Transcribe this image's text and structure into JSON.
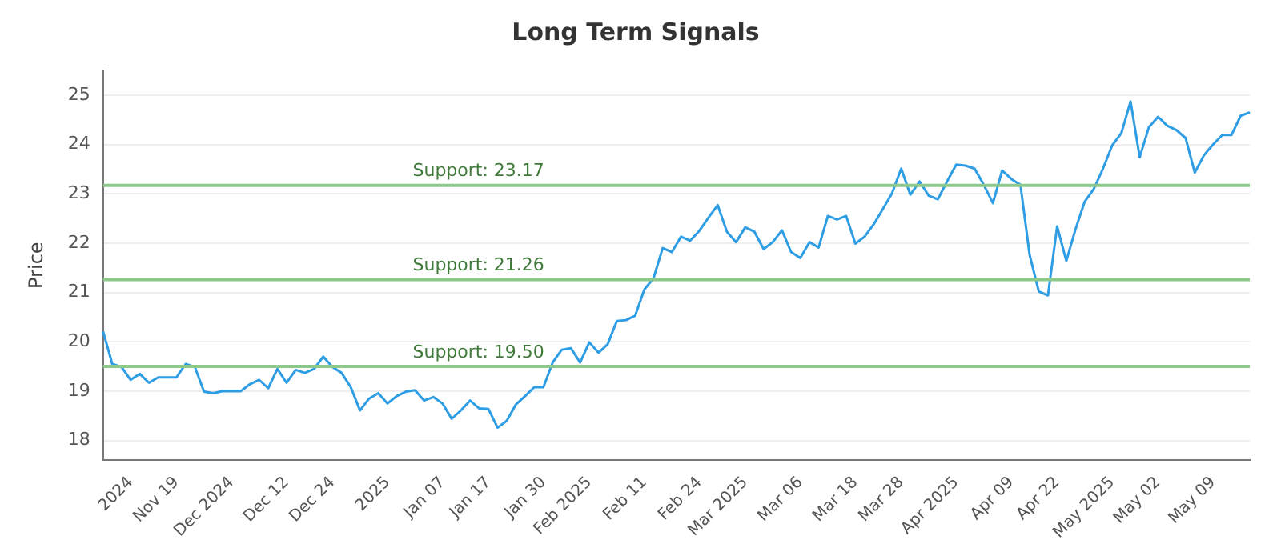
{
  "chart_data": {
    "type": "line",
    "title": "Long Term Signals",
    "ylabel": "Price",
    "categories": [
      null,
      null,
      null,
      "2024",
      null,
      null,
      null,
      null,
      "Nov 19",
      null,
      null,
      null,
      null,
      null,
      "Dec 2024",
      null,
      null,
      null,
      null,
      null,
      "Dec 12",
      null,
      null,
      null,
      null,
      "Dec 24",
      null,
      null,
      null,
      null,
      null,
      "2025",
      null,
      null,
      null,
      null,
      null,
      "Jan 07",
      null,
      null,
      null,
      null,
      "Jan 17",
      null,
      null,
      null,
      null,
      null,
      "Jan 30",
      null,
      null,
      null,
      null,
      "Feb 2025",
      null,
      null,
      null,
      null,
      null,
      "Feb 11",
      null,
      null,
      null,
      null,
      null,
      "Feb 24",
      null,
      null,
      null,
      null,
      "Mar 2025",
      null,
      null,
      null,
      null,
      null,
      "Mar 06",
      null,
      null,
      null,
      null,
      null,
      "Mar 18",
      null,
      null,
      null,
      null,
      "Mar 28",
      null,
      null,
      null,
      null,
      null,
      "Apr 2025",
      null,
      null,
      null,
      null,
      null,
      "Apr 09",
      null,
      null,
      null,
      null,
      "Apr 22",
      null,
      null,
      null,
      null,
      null,
      "May 2025",
      null,
      null,
      null,
      null,
      "May 02",
      null,
      null,
      null,
      null,
      null,
      "May 09",
      null,
      null,
      null,
      null
    ],
    "series": [
      {
        "color": "#2e9de4",
        "values": [
          20.21,
          19.55,
          19.49,
          19.23,
          19.35,
          19.17,
          19.28,
          19.28,
          19.28,
          19.55,
          19.49,
          18.99,
          18.96,
          19.0,
          19.0,
          19.0,
          19.14,
          19.23,
          19.06,
          19.45,
          19.17,
          19.43,
          19.37,
          19.45,
          19.7,
          19.49,
          19.37,
          19.08,
          18.61,
          18.85,
          18.96,
          18.75,
          18.9,
          18.99,
          19.02,
          18.81,
          18.88,
          18.75,
          18.44,
          18.61,
          18.81,
          18.65,
          18.64,
          18.26,
          18.4,
          18.73,
          18.9,
          19.08,
          19.08,
          19.58,
          19.84,
          19.87,
          19.58,
          19.99,
          19.78,
          19.95,
          20.42,
          20.44,
          20.53,
          21.06,
          21.29,
          21.9,
          21.82,
          22.13,
          22.05,
          22.25,
          22.52,
          22.77,
          22.23,
          22.02,
          22.32,
          22.23,
          21.88,
          22.02,
          22.26,
          21.82,
          21.7,
          22.02,
          21.91,
          22.55,
          22.48,
          22.55,
          21.99,
          22.13,
          22.38,
          22.69,
          23.01,
          23.51,
          22.98,
          23.25,
          22.96,
          22.89,
          23.25,
          23.59,
          23.57,
          23.51,
          23.18,
          22.81,
          23.47,
          23.3,
          23.18,
          21.76,
          21.02,
          20.94,
          22.34,
          21.64,
          22.28,
          22.84,
          23.1,
          23.51,
          23.98,
          24.23,
          24.87,
          23.74,
          24.35,
          24.56,
          24.38,
          24.29,
          24.13,
          23.43,
          23.78,
          24.0,
          24.19,
          24.19,
          24.58,
          24.65
        ]
      }
    ],
    "ylim": [
      17.6,
      25.5
    ],
    "yticks": [
      18,
      19,
      20,
      21,
      22,
      23,
      24,
      25
    ],
    "grid": "y",
    "legend": false,
    "marker": "none",
    "line_style": "solid",
    "ref_lines": [
      {
        "axis": "y",
        "value": 23.17,
        "label": "Support: 23.17",
        "color": "#8cc98a"
      },
      {
        "axis": "y",
        "value": 21.26,
        "label": "Support: 21.26",
        "color": "#8cc98a"
      },
      {
        "axis": "y",
        "value": 19.5,
        "label": "Support: 19.50",
        "color": "#8cc98a"
      }
    ]
  }
}
